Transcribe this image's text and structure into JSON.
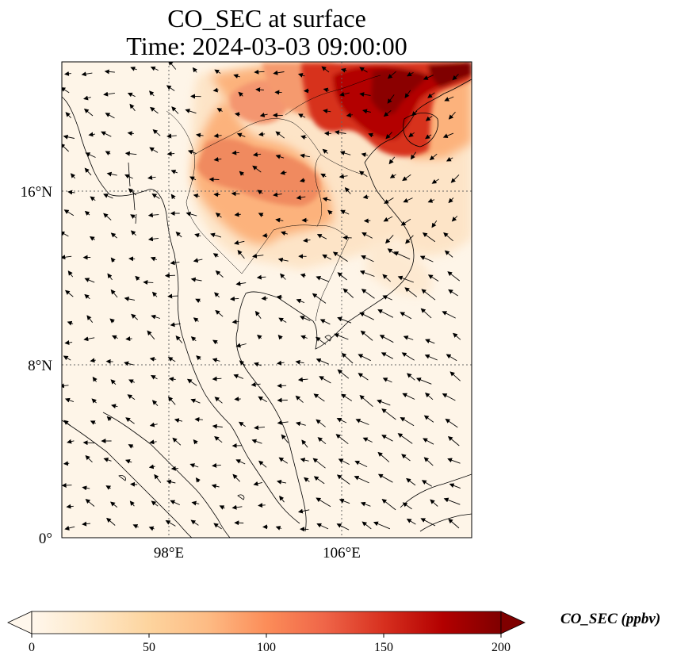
{
  "title": {
    "line1": "CO_SEC at surface",
    "line2": "Time: 2024-03-03 09:00:00"
  },
  "map": {
    "lon_range": [
      93,
      112
    ],
    "lat_range": [
      0,
      22
    ],
    "lon_ticks": [
      {
        "value": 98,
        "label": "98°E"
      },
      {
        "value": 106,
        "label": "106°E"
      }
    ],
    "lat_ticks": [
      {
        "value": 0,
        "label": "0°"
      },
      {
        "value": 8,
        "label": "8°N"
      },
      {
        "value": 16,
        "label": "16°N"
      }
    ],
    "gridlines": true,
    "field": "CO_SEC",
    "colormap": "OrRd",
    "wind_vectors": true
  },
  "colorbar": {
    "label": "CO_SEC (ppbv)",
    "min": 0,
    "max": 200,
    "ticks": [
      {
        "value": 0,
        "label": "0"
      },
      {
        "value": 50,
        "label": "50"
      },
      {
        "value": 100,
        "label": "100"
      },
      {
        "value": 150,
        "label": "150"
      },
      {
        "value": 200,
        "label": "200"
      }
    ],
    "extend": "both",
    "colors": [
      "#fff7ec",
      "#fee8c8",
      "#fdd49e",
      "#fdbb84",
      "#fc8d59",
      "#ef6548",
      "#d7301f",
      "#b30000",
      "#7f0000"
    ]
  }
}
